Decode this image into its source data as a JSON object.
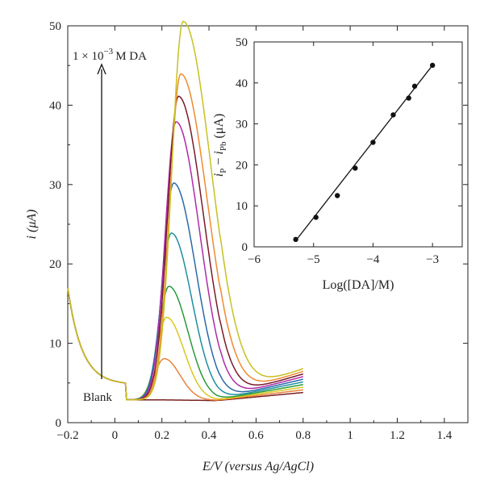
{
  "chart_data": [
    {
      "type": "line",
      "xlabel": "E/V (versus Ag/AgCl)",
      "ylabel": "i (μA)",
      "xlim": [
        -0.2,
        1.5
      ],
      "ylim": [
        0,
        50
      ],
      "x_ticks": [
        "−0.2",
        "0",
        "0.2",
        "0.4",
        "0.6",
        "0.8",
        "1",
        "1.2",
        "1.4"
      ],
      "y_ticks": [
        "0",
        "10",
        "20",
        "30",
        "40",
        "50"
      ],
      "annotations": {
        "top": "1 × 10",
        "top_exp": "−3",
        "top_unit": "M DA",
        "bottom": "Blank"
      },
      "series": [
        {
          "color": "#7a1f1f",
          "peak": 0
        },
        {
          "color": "#e8823a",
          "peak": 5.2
        },
        {
          "color": "#d8c820",
          "peak": 10.4
        },
        {
          "color": "#2a9a3a",
          "peak": 14.3
        },
        {
          "color": "#1f8fa0",
          "peak": 21
        },
        {
          "color": "#2a6aa8",
          "peak": 27.3
        },
        {
          "color": "#b02aa8",
          "peak": 35
        },
        {
          "color": "#7a1a2a",
          "peak": 38.2
        },
        {
          "color": "#f08a30",
          "peak": 41
        },
        {
          "color": "#c8c020",
          "peak": 47.6
        }
      ]
    },
    {
      "type": "scatter",
      "xlabel": "Log([DA]/M)",
      "ylabel": "iP − iPb (μA)",
      "ylabel_parts": {
        "i1": "i",
        "s1": "P",
        "minus": " − ",
        "i2": "i",
        "s2": "Pb",
        "unit": "(μA)"
      },
      "xlim": [
        -6,
        -2.5
      ],
      "ylim": [
        0,
        50
      ],
      "x_ticks": [
        "−6",
        "−5",
        "−4",
        "−3"
      ],
      "y_ticks": [
        "0",
        "10",
        "20",
        "30",
        "40",
        "50"
      ],
      "x": [
        -5.3,
        -4.96,
        -4.6,
        -4.3,
        -4.0,
        -3.66,
        -3.4,
        -3.3,
        -3.0
      ],
      "y": [
        1.8,
        7.2,
        12.5,
        19.2,
        25.5,
        32.2,
        36.3,
        39.2,
        44.3
      ],
      "fit_line": {
        "x": [
          -5.3,
          -3.0
        ],
        "y": [
          1.5,
          44.3
        ]
      }
    }
  ]
}
